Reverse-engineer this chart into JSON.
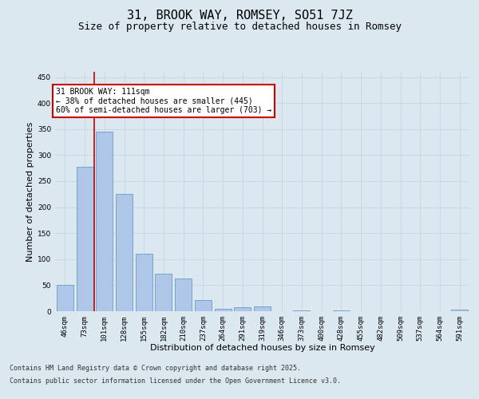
{
  "title": "31, BROOK WAY, ROMSEY, SO51 7JZ",
  "subtitle": "Size of property relative to detached houses in Romsey",
  "xlabel": "Distribution of detached houses by size in Romsey",
  "ylabel": "Number of detached properties",
  "categories": [
    "46sqm",
    "73sqm",
    "101sqm",
    "128sqm",
    "155sqm",
    "182sqm",
    "210sqm",
    "237sqm",
    "264sqm",
    "291sqm",
    "319sqm",
    "346sqm",
    "373sqm",
    "400sqm",
    "428sqm",
    "455sqm",
    "482sqm",
    "509sqm",
    "537sqm",
    "564sqm",
    "591sqm"
  ],
  "values": [
    50,
    277,
    345,
    226,
    110,
    72,
    63,
    22,
    5,
    7,
    9,
    0,
    2,
    0,
    2,
    0,
    0,
    0,
    0,
    0,
    3
  ],
  "bar_color": "#aec6e8",
  "bar_edge_color": "#5a8fc2",
  "vline_x": 1.5,
  "vline_color": "#cc0000",
  "annotation_box_text": "31 BROOK WAY: 111sqm\n← 38% of detached houses are smaller (445)\n60% of semi-detached houses are larger (703) →",
  "annotation_box_color": "#cc0000",
  "annotation_box_bg": "#ffffff",
  "ylim": [
    0,
    460
  ],
  "yticks": [
    0,
    50,
    100,
    150,
    200,
    250,
    300,
    350,
    400,
    450
  ],
  "grid_color": "#c8d8e8",
  "bg_color": "#dce8f0",
  "plot_bg_color": "#dce8f0",
  "footer_line1": "Contains HM Land Registry data © Crown copyright and database right 2025.",
  "footer_line2": "Contains public sector information licensed under the Open Government Licence v3.0.",
  "title_fontsize": 11,
  "subtitle_fontsize": 9,
  "axis_label_fontsize": 8,
  "tick_fontsize": 6.5,
  "annotation_fontsize": 7,
  "footer_fontsize": 6
}
